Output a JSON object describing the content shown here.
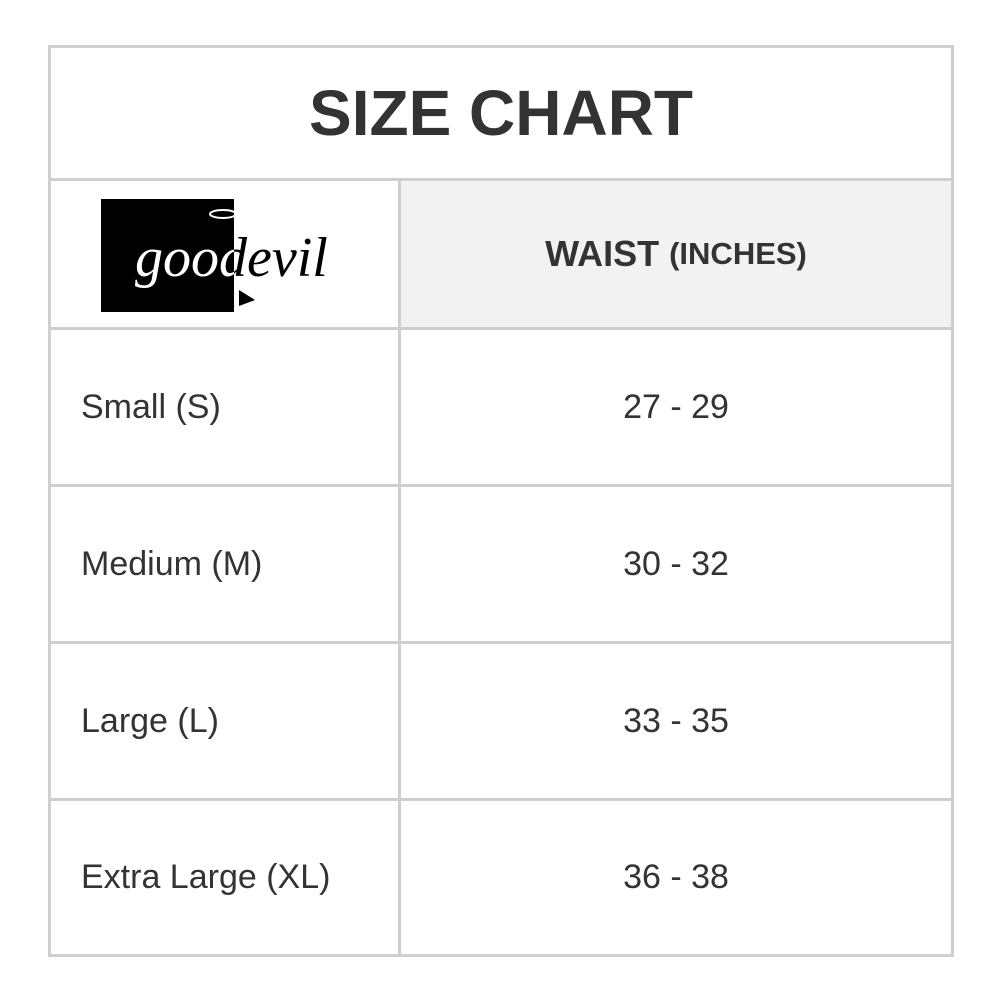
{
  "title": "SIZE CHART",
  "table": {
    "logo": "goodevil",
    "header": {
      "label": "WAIST",
      "unit": "(INCHES)"
    },
    "rows": [
      [
        "Small (S)",
        "27 - 29"
      ],
      [
        "Medium (M)",
        "30 - 32"
      ],
      [
        "Large (L)",
        "33 - 35"
      ],
      [
        "Extra Large (XL)",
        "36 - 38"
      ]
    ]
  }
}
